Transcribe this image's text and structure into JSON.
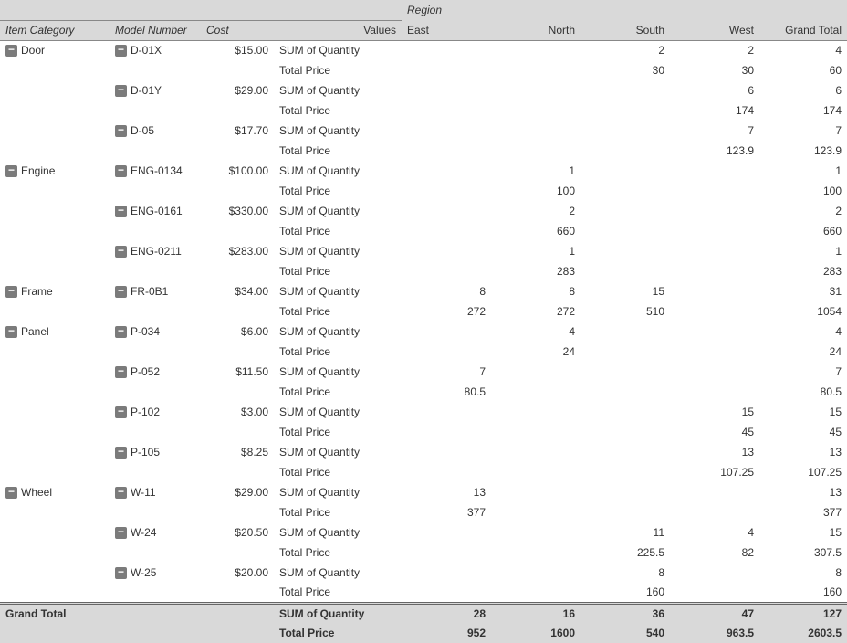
{
  "headers": {
    "regionLabel": "Region",
    "itemCategory": "Item Category",
    "modelNumber": "Model Number",
    "cost": "Cost",
    "values": "Values",
    "regions": {
      "east": "East",
      "north": "North",
      "south": "South",
      "west": "West",
      "grandTotal": "Grand Total"
    }
  },
  "valueLabels": {
    "sumQty": "SUM of Quantity",
    "totalPrice": "Total Price"
  },
  "categories": [
    {
      "name": "Door",
      "models": [
        {
          "model": "D-01X",
          "cost": "$15.00",
          "sumQty": {
            "east": "",
            "north": "",
            "south": "2",
            "west": "2",
            "gt": "4"
          },
          "totalPrice": {
            "east": "",
            "north": "",
            "south": "30",
            "west": "30",
            "gt": "60"
          }
        },
        {
          "model": "D-01Y",
          "cost": "$29.00",
          "sumQty": {
            "east": "",
            "north": "",
            "south": "",
            "west": "6",
            "gt": "6"
          },
          "totalPrice": {
            "east": "",
            "north": "",
            "south": "",
            "west": "174",
            "gt": "174"
          }
        },
        {
          "model": "D-05",
          "cost": "$17.70",
          "sumQty": {
            "east": "",
            "north": "",
            "south": "",
            "west": "7",
            "gt": "7"
          },
          "totalPrice": {
            "east": "",
            "north": "",
            "south": "",
            "west": "123.9",
            "gt": "123.9"
          }
        }
      ]
    },
    {
      "name": "Engine",
      "models": [
        {
          "model": "ENG-0134",
          "cost": "$100.00",
          "sumQty": {
            "east": "",
            "north": "1",
            "south": "",
            "west": "",
            "gt": "1"
          },
          "totalPrice": {
            "east": "",
            "north": "100",
            "south": "",
            "west": "",
            "gt": "100"
          }
        },
        {
          "model": "ENG-0161",
          "cost": "$330.00",
          "sumQty": {
            "east": "",
            "north": "2",
            "south": "",
            "west": "",
            "gt": "2"
          },
          "totalPrice": {
            "east": "",
            "north": "660",
            "south": "",
            "west": "",
            "gt": "660"
          }
        },
        {
          "model": "ENG-0211",
          "cost": "$283.00",
          "sumQty": {
            "east": "",
            "north": "1",
            "south": "",
            "west": "",
            "gt": "1"
          },
          "totalPrice": {
            "east": "",
            "north": "283",
            "south": "",
            "west": "",
            "gt": "283"
          }
        }
      ]
    },
    {
      "name": "Frame",
      "models": [
        {
          "model": "FR-0B1",
          "cost": "$34.00",
          "sumQty": {
            "east": "8",
            "north": "8",
            "south": "15",
            "west": "",
            "gt": "31"
          },
          "totalPrice": {
            "east": "272",
            "north": "272",
            "south": "510",
            "west": "",
            "gt": "1054"
          }
        }
      ]
    },
    {
      "name": "Panel",
      "models": [
        {
          "model": "P-034",
          "cost": "$6.00",
          "sumQty": {
            "east": "",
            "north": "4",
            "south": "",
            "west": "",
            "gt": "4"
          },
          "totalPrice": {
            "east": "",
            "north": "24",
            "south": "",
            "west": "",
            "gt": "24"
          }
        },
        {
          "model": "P-052",
          "cost": "$11.50",
          "sumQty": {
            "east": "7",
            "north": "",
            "south": "",
            "west": "",
            "gt": "7"
          },
          "totalPrice": {
            "east": "80.5",
            "north": "",
            "south": "",
            "west": "",
            "gt": "80.5"
          }
        },
        {
          "model": "P-102",
          "cost": "$3.00",
          "sumQty": {
            "east": "",
            "north": "",
            "south": "",
            "west": "15",
            "gt": "15"
          },
          "totalPrice": {
            "east": "",
            "north": "",
            "south": "",
            "west": "45",
            "gt": "45"
          }
        },
        {
          "model": "P-105",
          "cost": "$8.25",
          "sumQty": {
            "east": "",
            "north": "",
            "south": "",
            "west": "13",
            "gt": "13"
          },
          "totalPrice": {
            "east": "",
            "north": "",
            "south": "",
            "west": "107.25",
            "gt": "107.25"
          }
        }
      ]
    },
    {
      "name": "Wheel",
      "models": [
        {
          "model": "W-11",
          "cost": "$29.00",
          "sumQty": {
            "east": "13",
            "north": "",
            "south": "",
            "west": "",
            "gt": "13"
          },
          "totalPrice": {
            "east": "377",
            "north": "",
            "south": "",
            "west": "",
            "gt": "377"
          }
        },
        {
          "model": "W-24",
          "cost": "$20.50",
          "sumQty": {
            "east": "",
            "north": "",
            "south": "11",
            "west": "4",
            "gt": "15"
          },
          "totalPrice": {
            "east": "",
            "north": "",
            "south": "225.5",
            "west": "82",
            "gt": "307.5"
          }
        },
        {
          "model": "W-25",
          "cost": "$20.00",
          "sumQty": {
            "east": "",
            "north": "",
            "south": "8",
            "west": "",
            "gt": "8"
          },
          "totalPrice": {
            "east": "",
            "north": "",
            "south": "160",
            "west": "",
            "gt": "160"
          }
        }
      ]
    }
  ],
  "grandTotal": {
    "label": "Grand Total",
    "sumQty": {
      "east": "28",
      "north": "16",
      "south": "36",
      "west": "47",
      "gt": "127"
    },
    "totalPrice": {
      "east": "952",
      "north": "1600",
      "south": "540",
      "west": "963.5",
      "gt": "2603.5"
    }
  },
  "style": {
    "headerBg": "#d9d9d9",
    "collapseBtnBg": "#7b7b7b",
    "textColor": "#333333",
    "borderColor": "#888888",
    "doubleBorderColor": "#666666",
    "fontSize": 12,
    "tableWidth": 928,
    "columns": {
      "itemCategory": 120,
      "modelNumber": 100,
      "cost": 80,
      "values": 140,
      "east": 98,
      "north": 98,
      "south": 98,
      "west": 98,
      "grandTotal": 96
    }
  }
}
